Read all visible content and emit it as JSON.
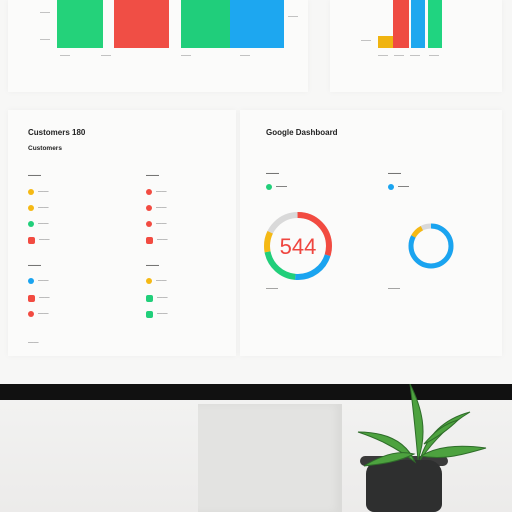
{
  "top_charts": {
    "left": {
      "ticks": [
        "——",
        "——",
        "——"
      ],
      "bars": [
        {
          "color": "#24d27a",
          "height": 0.85
        },
        {
          "color": "#f04e45",
          "height": 0.85
        },
        {
          "color": "#20ce7b",
          "height": 0.85
        },
        {
          "color": "#1da7f0",
          "height": 0.85
        }
      ],
      "x_labels": [
        "——",
        "——",
        "——",
        "——"
      ],
      "right_tick": "——"
    },
    "right": {
      "ticks": [
        "——",
        "——"
      ],
      "bars": [
        {
          "color": "#f0b410",
          "height": 0.16
        },
        {
          "color": "#ef4b42",
          "height": 0.9
        },
        {
          "color": "#1fa8ef",
          "height": 0.9
        },
        {
          "color": "#20d480",
          "height": 0.9
        }
      ],
      "x_labels": [
        "——",
        "——",
        "——",
        "——"
      ]
    }
  },
  "left_panel": {
    "title": "Customers 180",
    "subtitle": "Customers",
    "section1_title_left": "——",
    "section1_title_right": "——",
    "list_left_1": [
      "——",
      "——",
      "——",
      "——"
    ],
    "list_right_1": [
      "——",
      "——",
      "——",
      "——"
    ],
    "section2_title_left": "——",
    "section2_title_right": "——",
    "list_left_2": [
      "——",
      "——",
      "——"
    ],
    "list_right_2": [
      "——",
      "——",
      "——"
    ],
    "footer": "——"
  },
  "right_panel": {
    "title": "Google Dashboard",
    "left_heading": "——",
    "right_heading": "——",
    "left_legend": [
      "——"
    ],
    "right_legend": [
      "——"
    ],
    "big_value": "544",
    "left_caption": "——",
    "right_caption": "——"
  },
  "colors": {
    "green": "#21cf7a",
    "red": "#f24b41",
    "blue": "#1aa4f0",
    "yellow": "#f5b914",
    "gray": "#d9d9d9"
  },
  "icons": {
    "left_list": [
      "yellow-dot",
      "yellow-dot",
      "green-dot",
      "red-square"
    ],
    "right_list": [
      "red-dot",
      "red-dot",
      "red-dot",
      "red-square"
    ],
    "left_list2": [
      "blue-dot",
      "red-dot",
      "red-dot"
    ],
    "right_list2": [
      "yellow-dot",
      "green-icon",
      "green-icon"
    ]
  }
}
